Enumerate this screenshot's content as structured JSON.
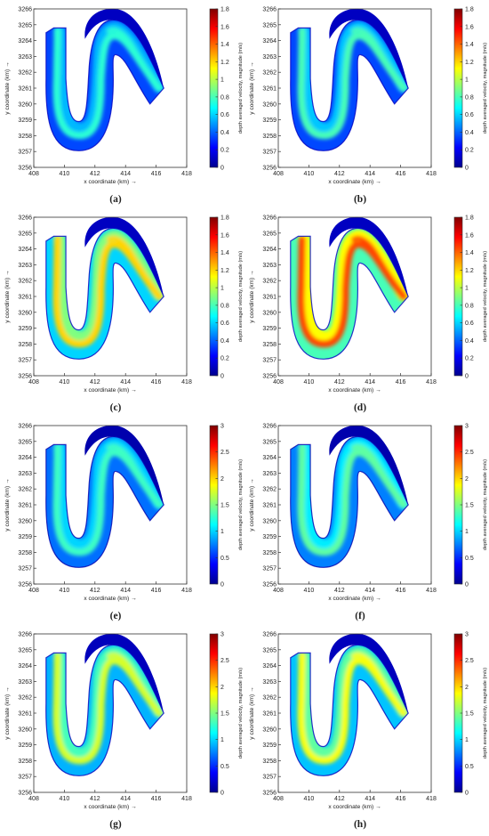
{
  "figure": {
    "xlabel": "x coordinate (km) →",
    "ylabel": "y coordinate (km) →",
    "colorbar_label": "depth averaged velocity, magnitude (m/s)",
    "xticks": [
      "408",
      "410",
      "412",
      "414",
      "416",
      "418"
    ],
    "yticks": [
      "3256",
      "3257",
      "3258",
      "3259",
      "3260",
      "3261",
      "3262",
      "3263",
      "3264",
      "3265",
      "3266"
    ]
  },
  "chart_data": [
    {
      "type": "heatmap",
      "caption": "(a)",
      "xlim": [
        408,
        418
      ],
      "ylim": [
        3256,
        3266
      ],
      "clim": [
        0,
        1.8
      ],
      "colorbar_ticks": [
        "0",
        "0.2",
        "0.4",
        "0.6",
        "0.8",
        "1",
        "1.2",
        "1.4",
        "1.6",
        "1.8"
      ],
      "typical_velocity": {
        "main_channel": 0.75,
        "inner_bank": 0.35,
        "outer_bank": 0.1
      }
    },
    {
      "type": "heatmap",
      "caption": "(b)",
      "xlim": [
        408,
        418
      ],
      "ylim": [
        3256,
        3266
      ],
      "clim": [
        0,
        1.8
      ],
      "colorbar_ticks": [
        "0",
        "0.2",
        "0.4",
        "0.6",
        "0.8",
        "1",
        "1.2",
        "1.4",
        "1.6",
        "1.8"
      ],
      "typical_velocity": {
        "main_channel": 0.8,
        "inner_bank": 0.35,
        "outer_bank": 0.1
      }
    },
    {
      "type": "heatmap",
      "caption": "(c)",
      "xlim": [
        408,
        418
      ],
      "ylim": [
        3256,
        3266
      ],
      "clim": [
        0,
        1.8
      ],
      "colorbar_ticks": [
        "0",
        "0.2",
        "0.4",
        "0.6",
        "0.8",
        "1",
        "1.2",
        "1.4",
        "1.6",
        "1.8"
      ],
      "typical_velocity": {
        "main_channel": 1.2,
        "inner_bank": 0.6,
        "outer_bank": 0.1
      }
    },
    {
      "type": "heatmap",
      "caption": "(d)",
      "xlim": [
        408,
        418
      ],
      "ylim": [
        3256,
        3266
      ],
      "clim": [
        0,
        1.8
      ],
      "colorbar_ticks": [
        "0",
        "0.2",
        "0.4",
        "0.6",
        "0.8",
        "1",
        "1.2",
        "1.4",
        "1.6",
        "1.8"
      ],
      "typical_velocity": {
        "main_channel": 1.45,
        "inner_bank": 0.8,
        "outer_bank": 0.1
      }
    },
    {
      "type": "heatmap",
      "caption": "(e)",
      "xlim": [
        408,
        418
      ],
      "ylim": [
        3256,
        3266
      ],
      "clim": [
        0,
        3
      ],
      "colorbar_ticks": [
        "0",
        "0.5",
        "1",
        "1.5",
        "2",
        "2.5",
        "3"
      ],
      "typical_velocity": {
        "main_channel": 1.3,
        "inner_bank": 0.7,
        "outer_bank": 0.1
      }
    },
    {
      "type": "heatmap",
      "caption": "(f)",
      "xlim": [
        408,
        418
      ],
      "ylim": [
        3256,
        3266
      ],
      "clim": [
        0,
        3
      ],
      "colorbar_ticks": [
        "0",
        "0.5",
        "1",
        "1.5",
        "2",
        "2.5",
        "3"
      ],
      "typical_velocity": {
        "main_channel": 1.4,
        "inner_bank": 0.75,
        "outer_bank": 0.1
      }
    },
    {
      "type": "heatmap",
      "caption": "(g)",
      "xlim": [
        408,
        418
      ],
      "ylim": [
        3256,
        3266
      ],
      "clim": [
        0,
        3
      ],
      "colorbar_ticks": [
        "0",
        "0.5",
        "1",
        "1.5",
        "2",
        "2.5",
        "3"
      ],
      "typical_velocity": {
        "main_channel": 1.75,
        "inner_bank": 0.9,
        "outer_bank": 0.15
      }
    },
    {
      "type": "heatmap",
      "caption": "(h)",
      "xlim": [
        408,
        418
      ],
      "ylim": [
        3256,
        3266
      ],
      "clim": [
        0,
        3
      ],
      "colorbar_ticks": [
        "0",
        "0.5",
        "1",
        "1.5",
        "2",
        "2.5",
        "3"
      ],
      "typical_velocity": {
        "main_channel": 1.85,
        "inner_bank": 0.95,
        "outer_bank": 0.15
      }
    }
  ],
  "colormap": [
    "#00008f",
    "#0000ff",
    "#0080ff",
    "#00ffff",
    "#80ff80",
    "#ffff00",
    "#ff8000",
    "#ff0000",
    "#800000"
  ]
}
